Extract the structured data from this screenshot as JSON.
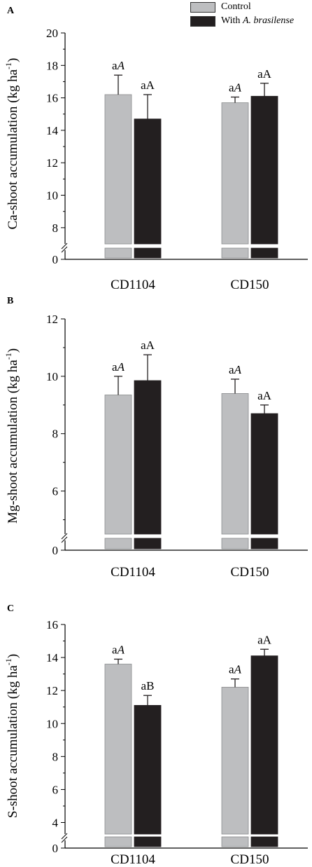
{
  "legend": {
    "control_label": "Control",
    "treated_prefix": "With ",
    "treated_italic": "A. brasilense"
  },
  "colors": {
    "control": "#bdbec0",
    "treated": "#231f20",
    "axis": "#000000",
    "error": "#231f20"
  },
  "chart_data": [
    {
      "type": "bar",
      "panel_letter": "A",
      "ylabel": "Ca-shoot accumulation (kg ha",
      "ylabel_sup": "-1",
      "ylabel_close": ")",
      "categories": [
        "CD1104",
        "CD150"
      ],
      "series": [
        {
          "name": "Control",
          "values": [
            16.2,
            15.7
          ],
          "errors": [
            1.2,
            0.35
          ]
        },
        {
          "name": "With A. brasilense",
          "values": [
            14.7,
            16.1
          ],
          "errors": [
            1.5,
            0.8
          ]
        }
      ],
      "bar_labels": [
        [
          "aA",
          "aA"
        ],
        [
          "aA",
          "aA"
        ]
      ],
      "italic_second": [
        [
          true,
          true
        ],
        [
          false,
          false
        ]
      ],
      "ylim": [
        7,
        20
      ],
      "yticks": [
        8,
        10,
        12,
        14,
        16,
        18,
        20
      ],
      "broken_axis_zero": "0"
    },
    {
      "type": "bar",
      "panel_letter": "B",
      "ylabel": "Mg-shoot accumulation (kg ha",
      "ylabel_sup": "-1",
      "ylabel_close": ")",
      "categories": [
        "CD1104",
        "CD150"
      ],
      "series": [
        {
          "name": "Control",
          "values": [
            9.35,
            9.4
          ],
          "errors": [
            0.65,
            0.5
          ]
        },
        {
          "name": "With A. brasilense",
          "values": [
            9.85,
            8.7
          ],
          "errors": [
            0.9,
            0.3
          ]
        }
      ],
      "bar_labels": [
        [
          "aA",
          "aA"
        ],
        [
          "aA",
          "aA"
        ]
      ],
      "italic_second": [
        [
          true,
          true
        ],
        [
          false,
          false
        ]
      ],
      "ylim": [
        4.5,
        12
      ],
      "yticks": [
        6,
        8,
        10,
        12
      ],
      "broken_axis_zero": "0"
    },
    {
      "type": "bar",
      "panel_letter": "C",
      "ylabel": "S-shoot accumulation (kg ha",
      "ylabel_sup": "-1",
      "ylabel_close": ")",
      "categories": [
        "CD1104",
        "CD150"
      ],
      "series": [
        {
          "name": "Control",
          "values": [
            13.6,
            12.2
          ],
          "errors": [
            0.3,
            0.5
          ]
        },
        {
          "name": "With A. brasilense",
          "values": [
            11.1,
            14.1
          ],
          "errors": [
            0.6,
            0.4
          ]
        }
      ],
      "bar_labels": [
        [
          "aA",
          "aA"
        ],
        [
          "aB",
          "aA"
        ]
      ],
      "italic_second": [
        [
          true,
          true
        ],
        [
          false,
          false
        ]
      ],
      "ylim": [
        3.3,
        16
      ],
      "yticks": [
        4,
        6,
        8,
        10,
        12,
        14,
        16
      ],
      "broken_axis_zero": "0"
    }
  ]
}
